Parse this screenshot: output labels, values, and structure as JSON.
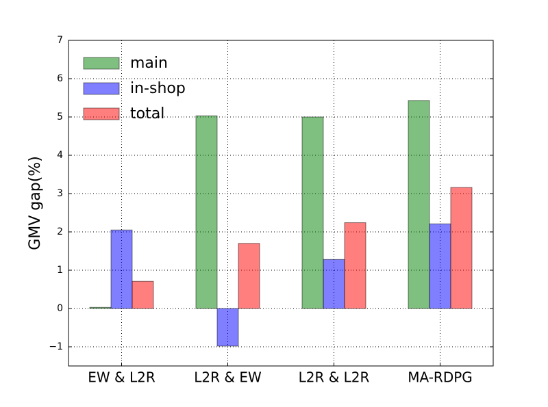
{
  "chart_data": {
    "type": "bar",
    "ylabel": "GMV gap(%)",
    "categories": [
      "EW & L2R",
      "L2R & EW",
      "L2R & L2R",
      "MA-RDPG"
    ],
    "series": [
      {
        "name": "main",
        "color": "#008000",
        "values": [
          0.03,
          5.03,
          5.0,
          5.43
        ]
      },
      {
        "name": "in-shop",
        "color": "#0000ff",
        "values": [
          2.05,
          -0.98,
          1.28,
          2.21
        ]
      },
      {
        "name": "total",
        "color": "#ff0000",
        "values": [
          0.71,
          1.7,
          2.24,
          3.16
        ]
      }
    ],
    "ylim": [
      -1.5,
      7
    ],
    "yticks": [
      {
        "value": -1,
        "label": "−1"
      },
      0,
      1,
      2,
      3,
      4,
      5,
      6,
      7
    ],
    "grid": true,
    "legend": "upper left"
  }
}
